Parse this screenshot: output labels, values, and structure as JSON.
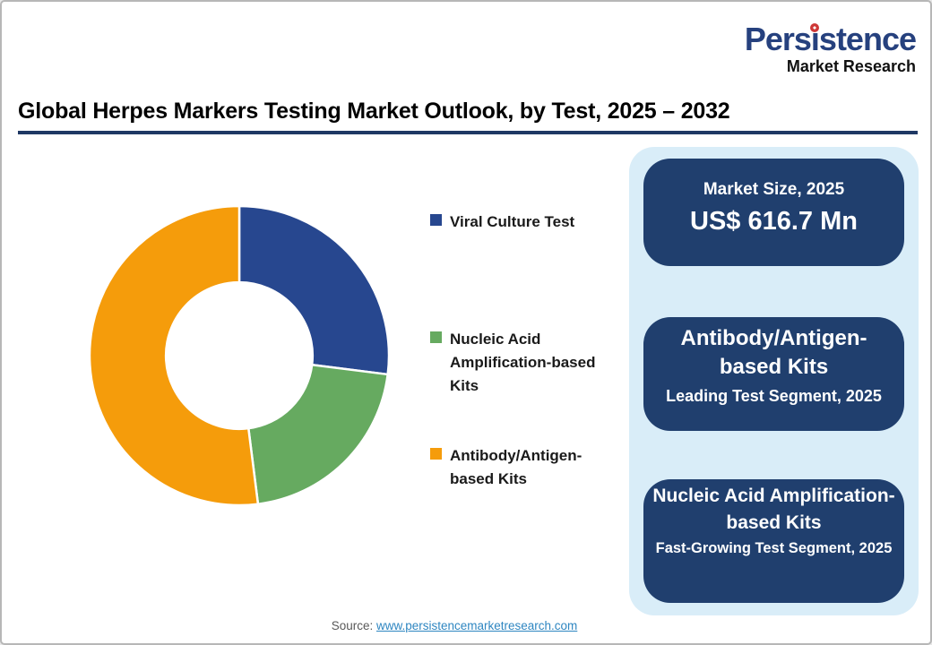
{
  "logo": {
    "name_pre": "Pers",
    "name_i": "i",
    "name_post": "stence",
    "subtitle": "Market Research"
  },
  "title": "Global Herpes Markers Testing Market Outlook, by Test, 2025 – 2032",
  "chart_data": {
    "type": "pie",
    "subtype": "donut",
    "title": "Global Herpes Markers Testing Market Outlook, by Test, 2025 – 2032",
    "categories": [
      "Viral Culture Test",
      "Nucleic Acid Amplification-based Kits",
      "Antibody/Antigen-based Kits"
    ],
    "values_pct": [
      27,
      21,
      52
    ],
    "colors": [
      "#27478f",
      "#66aa60",
      "#f59c0b"
    ],
    "inner_radius_ratio": 0.49,
    "start_angle_deg": 0,
    "legend_position": "right"
  },
  "legend": {
    "items": [
      {
        "label": "Viral Culture Test",
        "color": "#27478f"
      },
      {
        "label": "Nucleic Acid Amplification-based Kits",
        "color": "#66aa60"
      },
      {
        "label": "Antibody/Antigen-based Kits",
        "color": "#f59c0b"
      }
    ]
  },
  "panel": {
    "cards": [
      {
        "title": "Market Size, 2025",
        "value": "US$ 616.7 Mn"
      },
      {
        "title": "Antibody/Antigen-based Kits",
        "subtitle": "Leading Test Segment, 2025"
      },
      {
        "title": "Nucleic Acid Amplification-based Kits",
        "subtitle": "Fast-Growing Test Segment, 2025"
      }
    ]
  },
  "source": {
    "label": "Source: ",
    "link": "www.persistencemarketresearch.com"
  }
}
